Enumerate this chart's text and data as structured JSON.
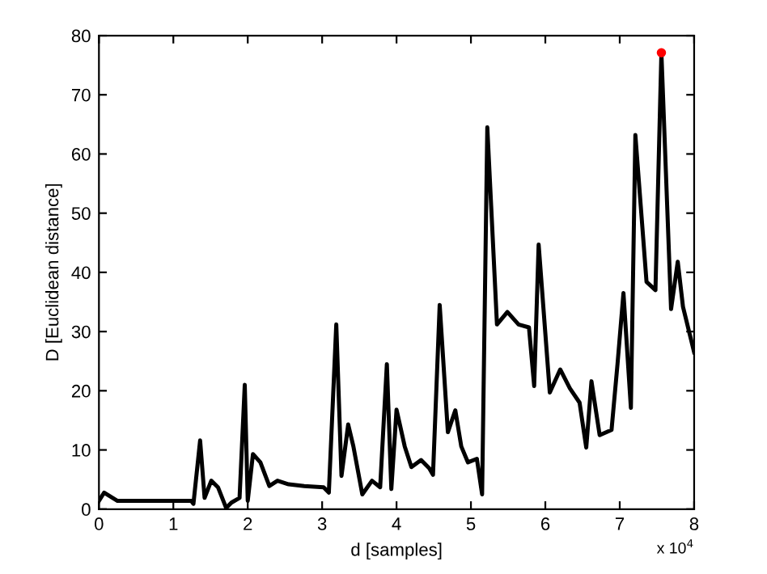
{
  "chart_data": {
    "type": "line",
    "xlabel": "d [samples]",
    "ylabel": "D [Euclidean distance]",
    "annotations": [
      "x 10$^{4}$"
    ],
    "xlim": [
      0,
      8
    ],
    "ylim": [
      0,
      80
    ],
    "xticks": [
      0,
      1,
      2,
      3,
      4,
      5,
      6,
      7,
      8
    ],
    "yticks": [
      0,
      10,
      20,
      30,
      40,
      50,
      60,
      70,
      80
    ],
    "grid": false,
    "legend": false,
    "marker": "none",
    "line_style": "solid",
    "series": [
      {
        "color": "#000000",
        "x": [
          0,
          0.07,
          0.25,
          1.24,
          1.27,
          1.36,
          1.42,
          1.51,
          1.6,
          1.71,
          1.78,
          1.89,
          1.96,
          2.0,
          2.07,
          2.17,
          2.29,
          2.4,
          2.55,
          2.76,
          3.02,
          3.09,
          3.19,
          3.26,
          3.35,
          3.42,
          3.54,
          3.67,
          3.78,
          3.87,
          3.93,
          4.0,
          4.11,
          4.2,
          4.33,
          4.44,
          4.49,
          4.58,
          4.69,
          4.79,
          4.87,
          4.96,
          5.08,
          5.15,
          5.22,
          5.35,
          5.49,
          5.64,
          5.78,
          5.85,
          5.91,
          6.06,
          6.2,
          6.33,
          6.46,
          6.55,
          6.62,
          6.73,
          6.89,
          6.97,
          7.05,
          7.15,
          7.21,
          7.36,
          7.48,
          7.56,
          7.69,
          7.78,
          7.85,
          8.0
        ],
        "values": [
          1.4,
          2.8,
          1.4,
          1.4,
          0.9,
          11.6,
          1.9,
          4.8,
          3.7,
          0.2,
          1.1,
          1.9,
          21,
          1.4,
          9.3,
          7.9,
          3.9,
          4.8,
          4.2,
          3.9,
          3.7,
          2.8,
          31.2,
          5.6,
          14.3,
          10.6,
          2.5,
          4.8,
          3.7,
          24.5,
          3.4,
          16.8,
          10.6,
          7.1,
          8.3,
          6.9,
          5.8,
          34.5,
          13.0,
          16.7,
          10.6,
          7.9,
          8.5,
          2.5,
          64.5,
          31.2,
          33.3,
          31.2,
          30.7,
          20.8,
          44.7,
          19.7,
          23.6,
          20.4,
          18.0,
          10.4,
          21.6,
          12.5,
          13.4,
          24.5,
          36.5,
          17.1,
          63.2,
          38.4,
          37.0,
          77.1,
          33.8,
          41.8,
          34.2,
          26.5
        ]
      },
      {
        "type": "scatter",
        "marker": "circle",
        "color": "#ff0000",
        "x": [
          7.56
        ],
        "values": [
          77.1
        ]
      }
    ]
  }
}
